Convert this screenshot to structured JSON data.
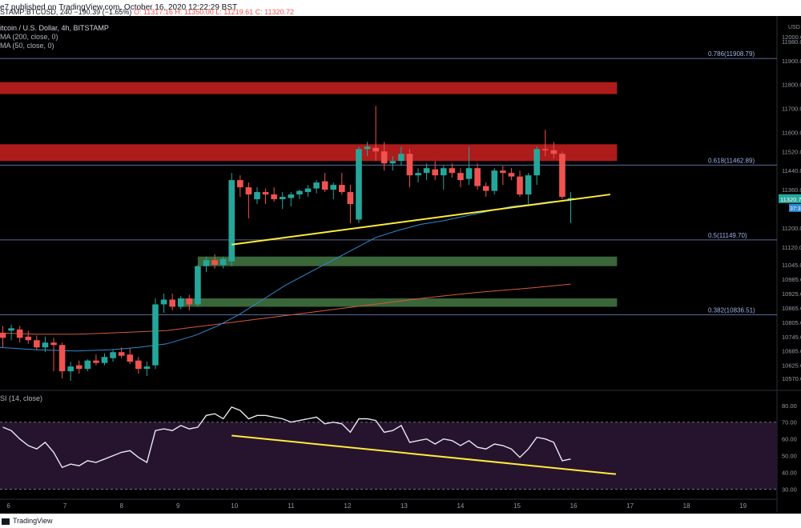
{
  "header": {
    "published_line": "e7 published on TradingView.com, October 16, 2020 12:22:29 BST",
    "symbol_line_prefix": "STAMP:BTCUSD, 240",
    "change": "−190.39 (−1.65%)",
    "open": "O: 11317.16",
    "high": "H: 11350.00",
    "low": "L: 11219.61",
    "close": "C: 11320.72"
  },
  "legend": {
    "title": "itcoin / U.S. Dollar, 4h, BITSTAMP",
    "ma200": "MA (200, close, 0)",
    "ma50": "MA (50, close, 0)"
  },
  "rsi_label": "SI (14, close)",
  "footer": {
    "brand": "TradingView"
  },
  "colors": {
    "up": "#26a69a",
    "down": "#ef5350",
    "trend": "#ffeb3b",
    "ma50": "#2f8ad1",
    "ma200": "#d35a3a",
    "resistance_zone": "#b71c1c",
    "support_zone": "#3d6b3d",
    "rsi_line": "#e8e8f0",
    "rsi_band": "#26142e",
    "fib_line": "#5b6b9a"
  },
  "chart_data": {
    "type": "candlestick",
    "symbol": "BTCUSD",
    "currency": "USD",
    "price_axis": {
      "min": 10520,
      "max": 12060,
      "ticks": [
        "12000.00",
        "11980.00",
        "11900.00",
        "11800.00",
        "11700.00",
        "11600.00",
        "11520.00",
        "11440.00",
        "11360.00",
        "11200.00",
        "11120.00",
        "11045.00",
        "10985.00",
        "10925.00",
        "10865.00",
        "10805.00",
        "10745.00",
        "10685.00",
        "10625.00",
        "10570.00"
      ],
      "tick_values": [
        12000,
        11980,
        11900,
        11800,
        11700,
        11600,
        11520,
        11440,
        11360,
        11200,
        11120,
        11045,
        10985,
        10925,
        10865,
        10805,
        10745,
        10685,
        10625,
        10570
      ],
      "last_price_label": "11320.7",
      "secondary_label": "37:3"
    },
    "x_axis": {
      "ticks": [
        "6",
        "7",
        "8",
        "9",
        "10",
        "11",
        "12",
        "13",
        "14",
        "15",
        "16",
        "17",
        "18",
        "19"
      ],
      "tick_days": [
        6,
        7,
        8,
        9,
        10,
        11,
        12,
        13,
        14,
        15,
        16,
        17,
        18,
        19
      ],
      "range": [
        5.85,
        19.6
      ]
    },
    "fib_levels": [
      {
        "label": "0.786(11908.79)",
        "price": 11908.79
      },
      {
        "label": "0.618(11462.89)",
        "price": 11462.89
      },
      {
        "label": "0.5(11149.70)",
        "price": 11149.7
      },
      {
        "label": "0.382(10836.51)",
        "price": 10836.51
      }
    ],
    "zones": [
      {
        "kind": "resistance",
        "from_day": 5.85,
        "to_day": 16.77,
        "low": 11760,
        "high": 11810
      },
      {
        "kind": "resistance",
        "from_day": 5.85,
        "to_day": 16.77,
        "low": 11480,
        "high": 11550
      },
      {
        "kind": "support",
        "from_day": 9.35,
        "to_day": 16.77,
        "low": 11040,
        "high": 11080
      },
      {
        "kind": "support",
        "from_day": 9.0,
        "to_day": 16.77,
        "low": 10870,
        "high": 10905
      }
    ],
    "trendline": {
      "from": [
        9.95,
        11130
      ],
      "to": [
        16.65,
        11340
      ]
    },
    "candles": [
      {
        "d": 5.9,
        "o": 10760,
        "h": 10790,
        "l": 10700,
        "c": 10740
      },
      {
        "d": 6.05,
        "o": 10770,
        "h": 10795,
        "l": 10730,
        "c": 10780
      },
      {
        "d": 6.2,
        "o": 10775,
        "h": 10790,
        "l": 10720,
        "c": 10740
      },
      {
        "d": 6.35,
        "o": 10745,
        "h": 10770,
        "l": 10715,
        "c": 10730
      },
      {
        "d": 6.5,
        "o": 10730,
        "h": 10750,
        "l": 10690,
        "c": 10700
      },
      {
        "d": 6.65,
        "o": 10700,
        "h": 10745,
        "l": 10680,
        "c": 10720
      },
      {
        "d": 6.8,
        "o": 10720,
        "h": 10740,
        "l": 10600,
        "c": 10710
      },
      {
        "d": 6.95,
        "o": 10710,
        "h": 10720,
        "l": 10570,
        "c": 10600
      },
      {
        "d": 7.1,
        "o": 10600,
        "h": 10640,
        "l": 10560,
        "c": 10620
      },
      {
        "d": 7.25,
        "o": 10625,
        "h": 10645,
        "l": 10590,
        "c": 10610
      },
      {
        "d": 7.4,
        "o": 10610,
        "h": 10650,
        "l": 10600,
        "c": 10645
      },
      {
        "d": 7.55,
        "o": 10645,
        "h": 10670,
        "l": 10625,
        "c": 10635
      },
      {
        "d": 7.7,
        "o": 10635,
        "h": 10675,
        "l": 10625,
        "c": 10660
      },
      {
        "d": 7.85,
        "o": 10655,
        "h": 10690,
        "l": 10640,
        "c": 10680
      },
      {
        "d": 8.0,
        "o": 10680,
        "h": 10700,
        "l": 10655,
        "c": 10665
      },
      {
        "d": 8.15,
        "o": 10670,
        "h": 10695,
        "l": 10630,
        "c": 10640
      },
      {
        "d": 8.3,
        "o": 10645,
        "h": 10660,
        "l": 10590,
        "c": 10610
      },
      {
        "d": 8.45,
        "o": 10610,
        "h": 10640,
        "l": 10580,
        "c": 10620
      },
      {
        "d": 8.6,
        "o": 10625,
        "h": 10905,
        "l": 10610,
        "c": 10880
      },
      {
        "d": 8.75,
        "o": 10880,
        "h": 10925,
        "l": 10845,
        "c": 10900
      },
      {
        "d": 8.9,
        "o": 10900,
        "h": 10925,
        "l": 10855,
        "c": 10870
      },
      {
        "d": 9.05,
        "o": 10870,
        "h": 10915,
        "l": 10860,
        "c": 10905
      },
      {
        "d": 9.2,
        "o": 10905,
        "h": 10920,
        "l": 10855,
        "c": 10880
      },
      {
        "d": 9.35,
        "o": 10880,
        "h": 11045,
        "l": 10870,
        "c": 11040
      },
      {
        "d": 9.5,
        "o": 11040,
        "h": 11080,
        "l": 11015,
        "c": 11065
      },
      {
        "d": 9.65,
        "o": 11065,
        "h": 11090,
        "l": 11030,
        "c": 11045
      },
      {
        "d": 9.8,
        "o": 11045,
        "h": 11080,
        "l": 11030,
        "c": 11070
      },
      {
        "d": 9.95,
        "o": 11060,
        "h": 11430,
        "l": 11040,
        "c": 11400
      },
      {
        "d": 10.1,
        "o": 11400,
        "h": 11420,
        "l": 11330,
        "c": 11370
      },
      {
        "d": 10.25,
        "o": 11370,
        "h": 11390,
        "l": 11240,
        "c": 11340
      },
      {
        "d": 10.4,
        "o": 11320,
        "h": 11370,
        "l": 11300,
        "c": 11350
      },
      {
        "d": 10.55,
        "o": 11350,
        "h": 11365,
        "l": 11300,
        "c": 11340
      },
      {
        "d": 10.7,
        "o": 11340,
        "h": 11370,
        "l": 11310,
        "c": 11320
      },
      {
        "d": 10.85,
        "o": 11320,
        "h": 11350,
        "l": 11280,
        "c": 11330
      },
      {
        "d": 11.0,
        "o": 11325,
        "h": 11350,
        "l": 11290,
        "c": 11340
      },
      {
        "d": 11.15,
        "o": 11340,
        "h": 11360,
        "l": 11320,
        "c": 11355
      },
      {
        "d": 11.3,
        "o": 11350,
        "h": 11380,
        "l": 11330,
        "c": 11365
      },
      {
        "d": 11.45,
        "o": 11365,
        "h": 11400,
        "l": 11345,
        "c": 11390
      },
      {
        "d": 11.6,
        "o": 11395,
        "h": 11430,
        "l": 11350,
        "c": 11360
      },
      {
        "d": 11.75,
        "o": 11360,
        "h": 11390,
        "l": 11320,
        "c": 11380
      },
      {
        "d": 11.9,
        "o": 11380,
        "h": 11430,
        "l": 11340,
        "c": 11350
      },
      {
        "d": 12.05,
        "o": 11350,
        "h": 11380,
        "l": 11220,
        "c": 11300
      },
      {
        "d": 12.2,
        "o": 11235,
        "h": 11540,
        "l": 11220,
        "c": 11530
      },
      {
        "d": 12.35,
        "o": 11530,
        "h": 11560,
        "l": 11500,
        "c": 11540
      },
      {
        "d": 12.5,
        "o": 11535,
        "h": 11710,
        "l": 11480,
        "c": 11520
      },
      {
        "d": 12.65,
        "o": 11520,
        "h": 11560,
        "l": 11440,
        "c": 11470
      },
      {
        "d": 12.8,
        "o": 11470,
        "h": 11500,
        "l": 11440,
        "c": 11480
      },
      {
        "d": 12.95,
        "o": 11480,
        "h": 11540,
        "l": 11460,
        "c": 11510
      },
      {
        "d": 13.1,
        "o": 11510,
        "h": 11530,
        "l": 11370,
        "c": 11420
      },
      {
        "d": 13.25,
        "o": 11420,
        "h": 11450,
        "l": 11390,
        "c": 11430
      },
      {
        "d": 13.4,
        "o": 11430,
        "h": 11470,
        "l": 11400,
        "c": 11450
      },
      {
        "d": 13.55,
        "o": 11445,
        "h": 11480,
        "l": 11400,
        "c": 11420
      },
      {
        "d": 13.7,
        "o": 11420,
        "h": 11460,
        "l": 11360,
        "c": 11450
      },
      {
        "d": 13.85,
        "o": 11450,
        "h": 11470,
        "l": 11410,
        "c": 11430
      },
      {
        "d": 14.0,
        "o": 11430,
        "h": 11450,
        "l": 11370,
        "c": 11400
      },
      {
        "d": 14.15,
        "o": 11405,
        "h": 11540,
        "l": 11380,
        "c": 11450
      },
      {
        "d": 14.3,
        "o": 11450,
        "h": 11470,
        "l": 11360,
        "c": 11375
      },
      {
        "d": 14.45,
        "o": 11375,
        "h": 11390,
        "l": 11330,
        "c": 11355
      },
      {
        "d": 14.6,
        "o": 11355,
        "h": 11450,
        "l": 11340,
        "c": 11440
      },
      {
        "d": 14.75,
        "o": 11440,
        "h": 11460,
        "l": 11380,
        "c": 11430
      },
      {
        "d": 14.9,
        "o": 11430,
        "h": 11450,
        "l": 11400,
        "c": 11415
      },
      {
        "d": 15.05,
        "o": 11415,
        "h": 11440,
        "l": 11330,
        "c": 11340
      },
      {
        "d": 15.2,
        "o": 11340,
        "h": 11430,
        "l": 11300,
        "c": 11420
      },
      {
        "d": 15.35,
        "o": 11420,
        "h": 11540,
        "l": 11380,
        "c": 11530
      },
      {
        "d": 15.5,
        "o": 11530,
        "h": 11610,
        "l": 11500,
        "c": 11525
      },
      {
        "d": 15.65,
        "o": 11525,
        "h": 11560,
        "l": 11490,
        "c": 11510
      },
      {
        "d": 15.8,
        "o": 11510,
        "h": 11520,
        "l": 11320,
        "c": 11330
      },
      {
        "d": 15.95,
        "o": 11320,
        "h": 11350,
        "l": 11220,
        "c": 11325
      }
    ],
    "ma50": [
      [
        5.85,
        10700
      ],
      [
        6.5,
        10690
      ],
      [
        7.2,
        10685
      ],
      [
        7.8,
        10690
      ],
      [
        8.3,
        10700
      ],
      [
        8.8,
        10715
      ],
      [
        9.3,
        10750
      ],
      [
        9.7,
        10790
      ],
      [
        10.1,
        10840
      ],
      [
        10.5,
        10900
      ],
      [
        10.9,
        10960
      ],
      [
        11.3,
        11010
      ],
      [
        11.7,
        11060
      ],
      [
        12.1,
        11110
      ],
      [
        12.5,
        11160
      ],
      [
        12.9,
        11190
      ],
      [
        13.3,
        11215
      ],
      [
        13.7,
        11230
      ],
      [
        14.1,
        11250
      ],
      [
        14.5,
        11270
      ],
      [
        14.9,
        11290
      ],
      [
        15.3,
        11300
      ],
      [
        15.6,
        11310
      ],
      [
        15.95,
        11315
      ]
    ],
    "ma200": [
      [
        5.85,
        10760
      ],
      [
        6.5,
        10755
      ],
      [
        7.2,
        10755
      ],
      [
        7.8,
        10760
      ],
      [
        8.3,
        10765
      ],
      [
        8.8,
        10770
      ],
      [
        9.3,
        10785
      ],
      [
        9.8,
        10800
      ],
      [
        10.3,
        10815
      ],
      [
        10.8,
        10830
      ],
      [
        11.3,
        10845
      ],
      [
        11.8,
        10860
      ],
      [
        12.3,
        10875
      ],
      [
        12.8,
        10890
      ],
      [
        13.3,
        10905
      ],
      [
        13.8,
        10918
      ],
      [
        14.3,
        10930
      ],
      [
        14.8,
        10940
      ],
      [
        15.3,
        10950
      ],
      [
        15.95,
        10965
      ]
    ],
    "rsi": {
      "axis_ticks": [
        "80.00",
        "70.00",
        "60.00",
        "50.00",
        "40.00",
        "30.00"
      ],
      "tick_values": [
        80,
        70,
        60,
        50,
        40,
        30
      ],
      "range": [
        25,
        88
      ],
      "band": [
        30,
        70
      ],
      "values": [
        [
          5.9,
          67
        ],
        [
          6.05,
          65
        ],
        [
          6.2,
          60
        ],
        [
          6.35,
          56
        ],
        [
          6.5,
          54
        ],
        [
          6.65,
          58
        ],
        [
          6.8,
          52
        ],
        [
          6.95,
          43
        ],
        [
          7.1,
          45
        ],
        [
          7.25,
          44
        ],
        [
          7.4,
          47
        ],
        [
          7.55,
          46
        ],
        [
          7.7,
          48
        ],
        [
          7.85,
          50
        ],
        [
          8.0,
          52
        ],
        [
          8.15,
          53
        ],
        [
          8.3,
          49
        ],
        [
          8.45,
          46
        ],
        [
          8.6,
          65
        ],
        [
          8.75,
          66
        ],
        [
          8.9,
          65
        ],
        [
          9.05,
          68
        ],
        [
          9.2,
          66
        ],
        [
          9.35,
          67
        ],
        [
          9.5,
          74
        ],
        [
          9.65,
          75
        ],
        [
          9.8,
          72
        ],
        [
          9.95,
          79
        ],
        [
          10.1,
          77
        ],
        [
          10.25,
          72
        ],
        [
          10.4,
          74
        ],
        [
          10.55,
          74
        ],
        [
          10.7,
          73
        ],
        [
          10.85,
          72
        ],
        [
          11.0,
          70
        ],
        [
          11.15,
          71
        ],
        [
          11.3,
          72
        ],
        [
          11.45,
          73
        ],
        [
          11.6,
          69
        ],
        [
          11.75,
          70
        ],
        [
          11.9,
          69
        ],
        [
          12.05,
          64
        ],
        [
          12.2,
          72
        ],
        [
          12.35,
          72
        ],
        [
          12.5,
          71
        ],
        [
          12.65,
          64
        ],
        [
          12.8,
          65
        ],
        [
          12.95,
          68
        ],
        [
          13.1,
          58
        ],
        [
          13.25,
          59
        ],
        [
          13.4,
          60
        ],
        [
          13.55,
          57
        ],
        [
          13.7,
          60
        ],
        [
          13.85,
          59
        ],
        [
          14.0,
          56
        ],
        [
          14.15,
          59
        ],
        [
          14.3,
          55
        ],
        [
          14.45,
          54
        ],
        [
          14.6,
          57
        ],
        [
          14.75,
          56
        ],
        [
          14.9,
          54
        ],
        [
          15.05,
          49
        ],
        [
          15.2,
          54
        ],
        [
          15.35,
          61
        ],
        [
          15.5,
          60
        ],
        [
          15.65,
          58
        ],
        [
          15.8,
          47
        ],
        [
          15.95,
          48
        ]
      ],
      "trendline": {
        "from": [
          9.95,
          62
        ],
        "to": [
          16.75,
          39
        ]
      }
    }
  }
}
